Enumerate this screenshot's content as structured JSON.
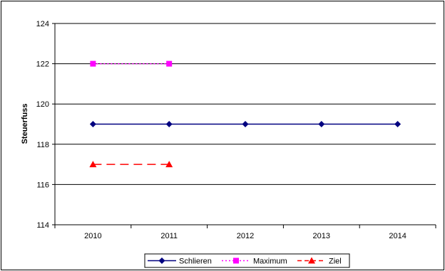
{
  "chart_data": {
    "type": "line",
    "title": "",
    "xlabel": "",
    "ylabel": "Steuerfuss",
    "categories": [
      "2010",
      "2011",
      "2012",
      "2013",
      "2014"
    ],
    "ylim": [
      114,
      124
    ],
    "yticks": [
      "114",
      "116",
      "118",
      "120",
      "122",
      "124"
    ],
    "grid": "horizontal",
    "legend_position": "bottom",
    "series": [
      {
        "name": "Schlieren",
        "values": [
          119,
          119,
          119,
          119,
          119
        ],
        "color": "#000080",
        "line": "solid",
        "marker": "diamond"
      },
      {
        "name": "Maximum",
        "values": [
          122,
          122,
          null,
          null,
          null
        ],
        "color": "#ff00ff",
        "line": "dotted",
        "marker": "square"
      },
      {
        "name": "Ziel",
        "values": [
          117,
          117,
          null,
          null,
          null
        ],
        "color": "#ff0000",
        "line": "dashed",
        "marker": "triangle"
      }
    ]
  }
}
